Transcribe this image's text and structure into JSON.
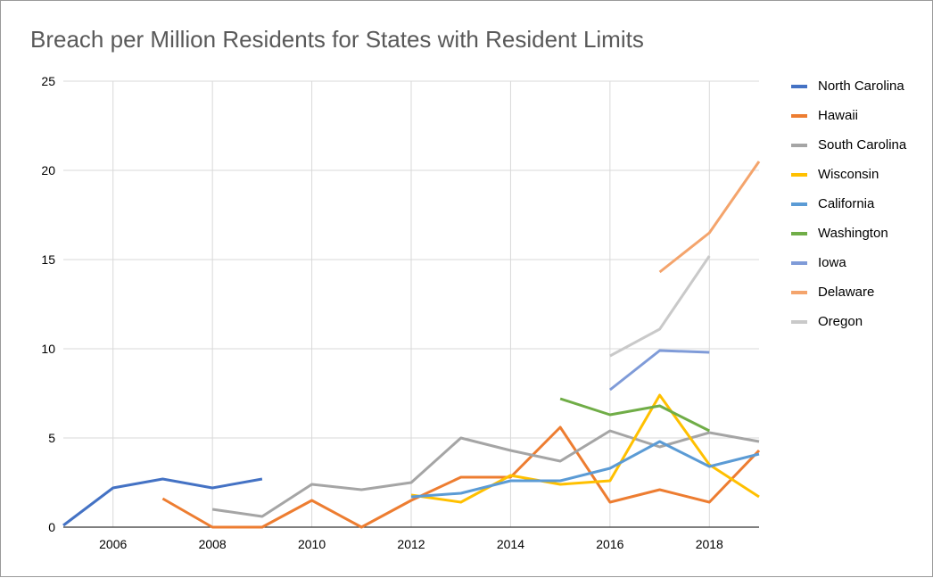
{
  "chart_data": {
    "type": "line",
    "title": "Breach per Million Residents for States with Resident Limits",
    "xlabel": "",
    "ylabel": "",
    "xlim": [
      2005,
      2019
    ],
    "ylim": [
      0,
      25
    ],
    "x_ticks": [
      "2006",
      "2008",
      "2010",
      "2012",
      "2014",
      "2016",
      "2018"
    ],
    "y_ticks": [
      "0",
      "5",
      "10",
      "15",
      "20",
      "25"
    ],
    "grid": true,
    "legend_position": "right",
    "series": [
      {
        "name": "North Carolina",
        "color": "#4472c4",
        "points": [
          [
            2005,
            0.1
          ],
          [
            2006,
            2.2
          ],
          [
            2007,
            2.7
          ],
          [
            2008,
            2.2
          ],
          [
            2009,
            2.7
          ]
        ]
      },
      {
        "name": "Hawaii",
        "color": "#ed7d31",
        "points": [
          [
            2007,
            1.6
          ],
          [
            2008,
            0
          ],
          [
            2009,
            0
          ],
          [
            2010,
            1.5
          ],
          [
            2011,
            0
          ],
          [
            2012,
            1.5
          ],
          [
            2013,
            2.8
          ],
          [
            2014,
            2.8
          ],
          [
            2015,
            5.6
          ],
          [
            2016,
            1.4
          ],
          [
            2017,
            2.1
          ],
          [
            2018,
            1.4
          ],
          [
            2019,
            4.3
          ]
        ]
      },
      {
        "name": "South Carolina",
        "color": "#a5a5a5",
        "points": [
          [
            2008,
            1.0
          ],
          [
            2009,
            0.6
          ],
          [
            2010,
            2.4
          ],
          [
            2011,
            2.1
          ],
          [
            2012,
            2.5
          ],
          [
            2013,
            5.0
          ],
          [
            2014,
            4.3
          ],
          [
            2015,
            3.7
          ],
          [
            2016,
            5.4
          ],
          [
            2017,
            4.5
          ],
          [
            2018,
            5.3
          ],
          [
            2019,
            4.8
          ]
        ]
      },
      {
        "name": "Wisconsin",
        "color": "#ffc000",
        "points": [
          [
            2012,
            1.8
          ],
          [
            2013,
            1.4
          ],
          [
            2014,
            2.9
          ],
          [
            2015,
            2.4
          ],
          [
            2016,
            2.6
          ],
          [
            2017,
            7.4
          ],
          [
            2018,
            3.5
          ],
          [
            2019,
            1.7
          ]
        ]
      },
      {
        "name": "California",
        "color": "#5b9bd5",
        "points": [
          [
            2012,
            1.7
          ],
          [
            2013,
            1.9
          ],
          [
            2014,
            2.6
          ],
          [
            2015,
            2.6
          ],
          [
            2016,
            3.3
          ],
          [
            2017,
            4.8
          ],
          [
            2018,
            3.4
          ],
          [
            2019,
            4.1
          ]
        ]
      },
      {
        "name": "Washington",
        "color": "#70ad47",
        "points": [
          [
            2015,
            7.2
          ],
          [
            2016,
            6.3
          ],
          [
            2017,
            6.8
          ],
          [
            2018,
            5.4
          ]
        ]
      },
      {
        "name": "Iowa",
        "color": "#7f9bd8",
        "points": [
          [
            2016,
            7.7
          ],
          [
            2017,
            9.9
          ],
          [
            2018,
            9.8
          ]
        ]
      },
      {
        "name": "Delaware",
        "color": "#f4a46c",
        "points": [
          [
            2017,
            14.3
          ],
          [
            2018,
            16.5
          ],
          [
            2019,
            20.5
          ]
        ]
      },
      {
        "name": "Oregon",
        "color": "#c9c9c9",
        "points": [
          [
            2016,
            9.6
          ],
          [
            2017,
            11.1
          ],
          [
            2018,
            15.2
          ]
        ]
      }
    ]
  }
}
